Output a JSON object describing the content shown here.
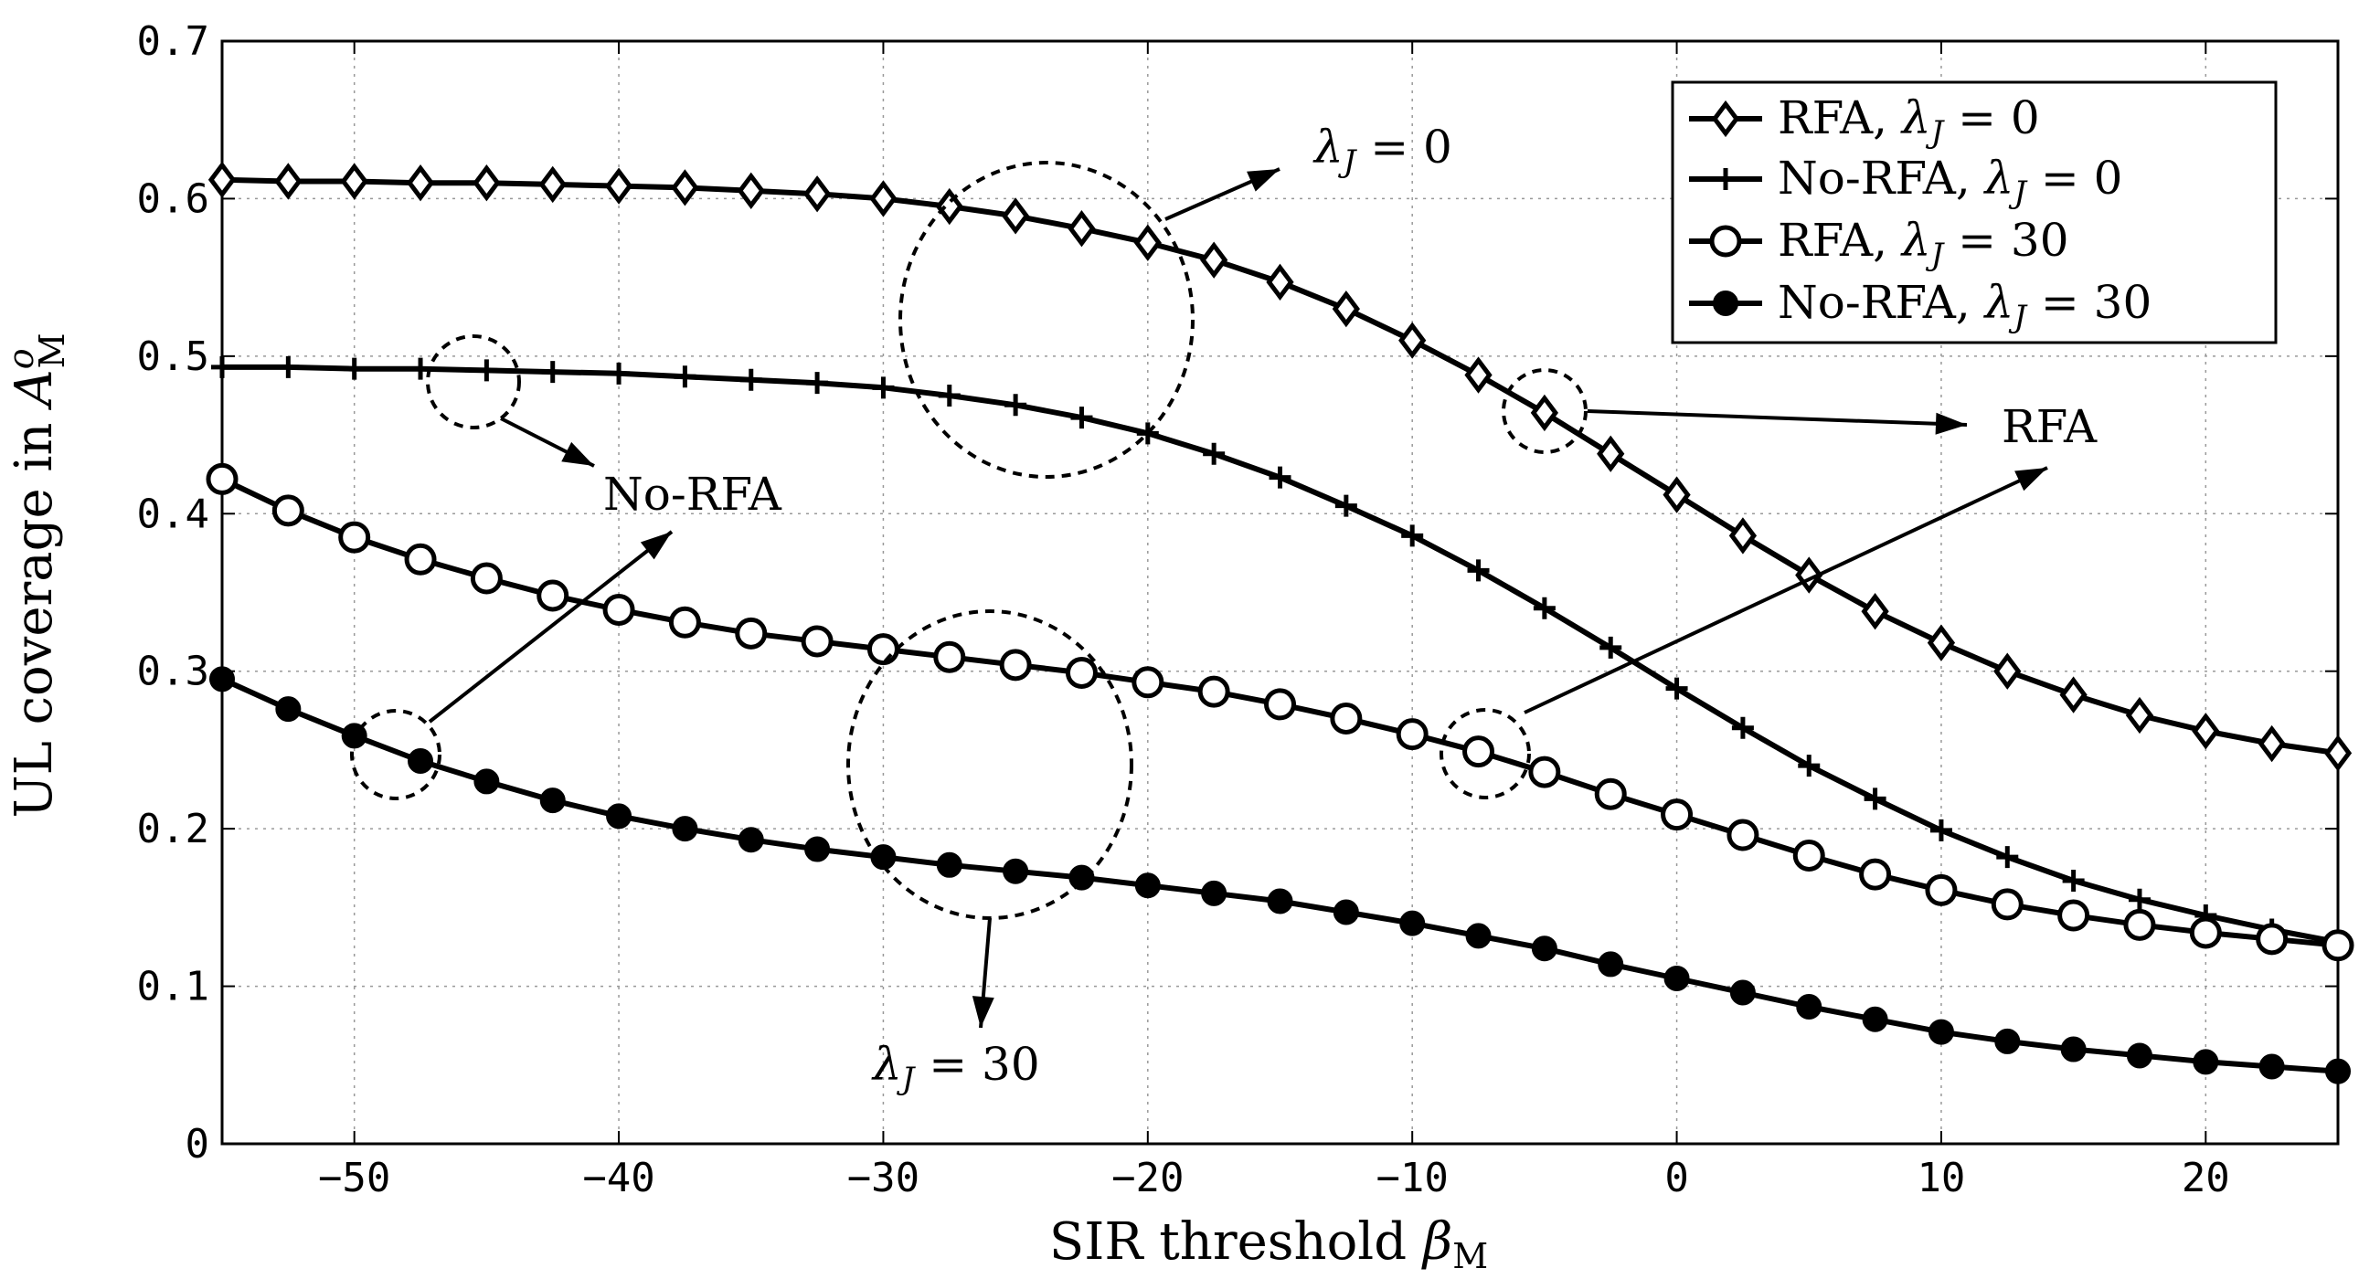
{
  "chart_data": {
    "type": "line",
    "xlabel_main": "SIR threshold",
    "xlabel_symbol": "β",
    "xlabel_sub": "M",
    "ylabel_main": "UL coverage in",
    "ylabel_symbol": "A",
    "ylabel_sup": "o",
    "ylabel_sub": "M",
    "xlim": [
      -55,
      25
    ],
    "ylim": [
      0,
      0.7
    ],
    "xticks": [
      -50,
      -40,
      -30,
      -20,
      -10,
      0,
      10,
      20
    ],
    "xtick_labels": [
      "−50",
      "−40",
      "−30",
      "−20",
      "−10",
      "0",
      "10",
      "20"
    ],
    "yticks": [
      0,
      0.1,
      0.2,
      0.3,
      0.4,
      0.5,
      0.6,
      0.7
    ],
    "ytick_labels": [
      "0",
      "0.1",
      "0.2",
      "0.3",
      "0.4",
      "0.5",
      "0.6",
      "0.7"
    ],
    "grid": true,
    "legend_position": "top-right",
    "x": [
      -55,
      -52.5,
      -50,
      -47.5,
      -45,
      -42.5,
      -40,
      -37.5,
      -35,
      -32.5,
      -30,
      -27.5,
      -25,
      -22.5,
      -20,
      -17.5,
      -15,
      -12.5,
      -10,
      -7.5,
      -5,
      -2.5,
      0,
      2.5,
      5,
      7.5,
      10,
      12.5,
      15,
      17.5,
      20,
      22.5,
      25
    ],
    "series": [
      {
        "name": "RFA, λJ = 0",
        "marker": "diamond",
        "values": [
          0.612,
          0.611,
          0.611,
          0.61,
          0.61,
          0.609,
          0.608,
          0.607,
          0.605,
          0.603,
          0.6,
          0.595,
          0.589,
          0.581,
          0.572,
          0.561,
          0.547,
          0.53,
          0.51,
          0.488,
          0.464,
          0.438,
          0.412,
          0.386,
          0.361,
          0.338,
          0.318,
          0.3,
          0.285,
          0.272,
          0.262,
          0.254,
          0.248
        ]
      },
      {
        "name": "No-RFA, λJ = 0",
        "marker": "plus",
        "values": [
          0.493,
          0.493,
          0.492,
          0.492,
          0.491,
          0.49,
          0.489,
          0.487,
          0.485,
          0.483,
          0.48,
          0.475,
          0.469,
          0.461,
          0.451,
          0.438,
          0.423,
          0.405,
          0.386,
          0.364,
          0.34,
          0.315,
          0.289,
          0.264,
          0.24,
          0.219,
          0.199,
          0.182,
          0.167,
          0.155,
          0.145,
          0.136,
          0.128
        ]
      },
      {
        "name": "RFA, λJ = 30",
        "marker": "circle",
        "values": [
          0.422,
          0.402,
          0.385,
          0.371,
          0.359,
          0.348,
          0.339,
          0.331,
          0.324,
          0.319,
          0.314,
          0.309,
          0.304,
          0.299,
          0.293,
          0.287,
          0.279,
          0.27,
          0.26,
          0.249,
          0.236,
          0.222,
          0.209,
          0.196,
          0.183,
          0.171,
          0.161,
          0.152,
          0.145,
          0.139,
          0.134,
          0.13,
          0.126
        ]
      },
      {
        "name": "No-RFA, λJ = 30",
        "marker": "filled-circle",
        "values": [
          0.295,
          0.276,
          0.259,
          0.243,
          0.23,
          0.218,
          0.208,
          0.2,
          0.193,
          0.187,
          0.182,
          0.177,
          0.173,
          0.169,
          0.164,
          0.159,
          0.154,
          0.147,
          0.14,
          0.132,
          0.124,
          0.114,
          0.105,
          0.096,
          0.087,
          0.079,
          0.071,
          0.065,
          0.06,
          0.056,
          0.052,
          0.049,
          0.046
        ]
      }
    ],
    "legend": [
      {
        "label": "RFA, ",
        "lambda": "λ",
        "sub": "J",
        "value": " = 0"
      },
      {
        "label": "No-RFA, ",
        "lambda": "λ",
        "sub": "J",
        "value": " = 0"
      },
      {
        "label": "RFA, ",
        "lambda": "λ",
        "sub": "J",
        "value": " = 30"
      },
      {
        "label": "No-RFA, ",
        "lambda": "λ",
        "sub": "J",
        "value": " = 30"
      }
    ],
    "annotations": {
      "lambda0": {
        "lambda": "λ",
        "sub": "J",
        "value": " = 0"
      },
      "lambda30": {
        "lambda": "λ",
        "sub": "J",
        "value": " = 30"
      },
      "rfa": "RFA",
      "norfa": "No-RFA"
    }
  }
}
